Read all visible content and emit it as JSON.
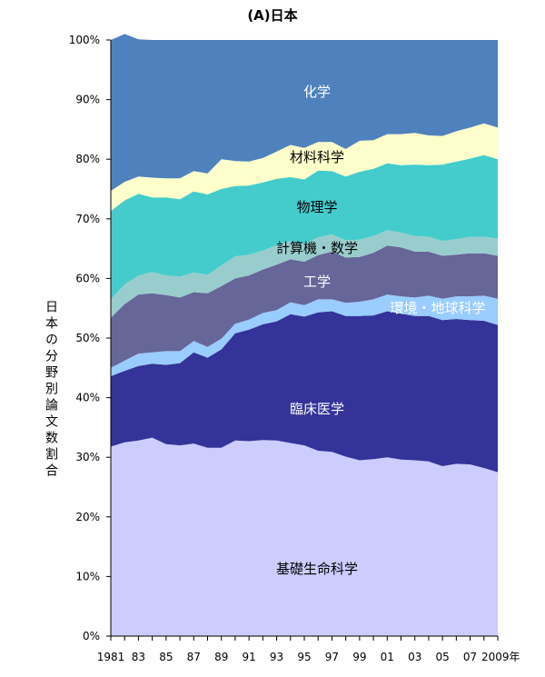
{
  "chart_data": {
    "type": "area",
    "title": "(A)日本",
    "ylabel": "日本の分野別論文数割合",
    "x_tick_labels": [
      "1981",
      "83",
      "85",
      "87",
      "89",
      "91",
      "93",
      "95",
      "97",
      "99",
      "01",
      "03",
      "05",
      "07",
      "2009年"
    ],
    "y_tick_labels": [
      "0%",
      "10%",
      "20%",
      "30%",
      "40%",
      "50%",
      "60%",
      "70%",
      "80%",
      "90%",
      "100%"
    ],
    "ylim": [
      0,
      100
    ],
    "x": [
      1981,
      1982,
      1983,
      1984,
      1985,
      1986,
      1987,
      1988,
      1989,
      1990,
      1991,
      1992,
      1993,
      1994,
      1995,
      1996,
      1997,
      1998,
      1999,
      2000,
      2001,
      2002,
      2003,
      2004,
      2005,
      2006,
      2007,
      2008,
      2009
    ],
    "series": [
      {
        "name": "基礎生命科学",
        "color": "#ccccff",
        "values": [
          31.8,
          32.5,
          32.8,
          33.3,
          32.2,
          32.0,
          32.3,
          31.6,
          31.6,
          32.8,
          32.7,
          32.9,
          32.8,
          32.4,
          32.0,
          31.1,
          30.9,
          30.1,
          29.5,
          29.7,
          30.0,
          29.6,
          29.5,
          29.3,
          28.5,
          28.9,
          28.8,
          28.2,
          27.5
        ]
      },
      {
        "name": "臨床医学",
        "color": "#333399",
        "values": [
          11.8,
          12.0,
          12.5,
          12.4,
          13.3,
          13.8,
          15.3,
          15.1,
          16.5,
          18.0,
          18.7,
          19.4,
          20.0,
          21.6,
          21.6,
          23.2,
          23.6,
          23.6,
          24.2,
          24.1,
          24.5,
          24.5,
          24.2,
          24.4,
          24.5,
          24.3,
          24.2,
          24.7,
          24.7
        ]
      },
      {
        "name": "環境・地球科学",
        "color": "#99ccff",
        "values": [
          1.4,
          1.7,
          2.1,
          1.9,
          2.3,
          2.0,
          1.9,
          1.8,
          1.8,
          1.6,
          1.7,
          1.9,
          1.9,
          2.0,
          1.9,
          2.2,
          2.0,
          2.2,
          2.4,
          2.7,
          2.8,
          2.9,
          3.1,
          3.4,
          3.6,
          3.8,
          4.0,
          4.2,
          4.4
        ]
      },
      {
        "name": "工学",
        "color": "#666699",
        "values": [
          8.4,
          9.5,
          9.9,
          9.9,
          9.4,
          9.0,
          8.2,
          9.0,
          8.8,
          7.6,
          7.4,
          7.3,
          7.6,
          7.2,
          7.3,
          7.4,
          8.0,
          7.6,
          7.5,
          7.8,
          8.2,
          8.2,
          7.7,
          7.4,
          7.2,
          7.0,
          7.2,
          7.1,
          7.2
        ]
      },
      {
        "name": "計算機・数学",
        "color": "#99cccc",
        "values": [
          3.1,
          3.3,
          3.2,
          3.6,
          3.3,
          3.5,
          3.3,
          3.1,
          3.5,
          3.7,
          3.5,
          3.2,
          3.3,
          3.1,
          3.0,
          3.0,
          2.9,
          2.9,
          2.9,
          2.8,
          2.6,
          2.5,
          2.6,
          2.5,
          2.5,
          2.6,
          2.8,
          2.8,
          2.9
        ]
      },
      {
        "name": "物理学",
        "color": "#44cccc",
        "values": [
          14.8,
          14.1,
          13.7,
          12.5,
          13.1,
          13.0,
          13.6,
          13.5,
          12.8,
          11.8,
          11.6,
          11.4,
          11.1,
          10.7,
          10.8,
          11.2,
          10.6,
          10.7,
          11.4,
          11.3,
          11.2,
          11.3,
          12.0,
          12.0,
          12.8,
          13.0,
          13.1,
          13.7,
          13.3
        ]
      },
      {
        "name": "材料科学",
        "color": "#ffffcc",
        "values": [
          3.4,
          3.1,
          2.9,
          3.3,
          3.2,
          3.5,
          3.4,
          3.5,
          5.0,
          4.2,
          4.0,
          4.1,
          4.6,
          5.4,
          5.3,
          4.8,
          4.9,
          4.6,
          5.2,
          4.8,
          4.9,
          5.2,
          5.3,
          5.0,
          4.8,
          5.1,
          5.2,
          5.3,
          5.3
        ]
      },
      {
        "name": "化学",
        "color": "#4f81bd",
        "values": [
          25.3,
          24.8,
          23.0,
          23.1,
          23.2,
          23.2,
          22.0,
          22.4,
          20.0,
          20.3,
          20.4,
          19.8,
          18.7,
          17.6,
          18.1,
          17.1,
          17.1,
          18.3,
          16.9,
          16.8,
          15.8,
          15.8,
          15.6,
          16.0,
          16.1,
          15.3,
          14.7,
          14.0,
          14.7
        ]
      }
    ]
  }
}
